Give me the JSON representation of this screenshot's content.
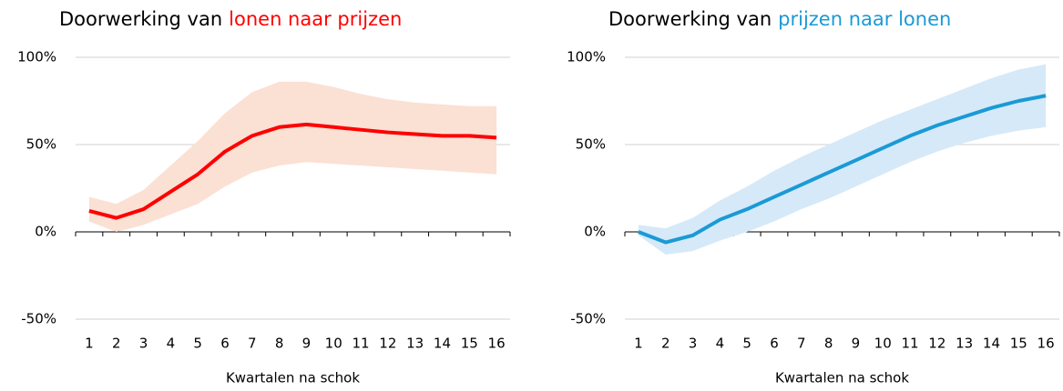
{
  "chart_data": [
    {
      "type": "line",
      "title_parts": [
        "Doorwerking van",
        "lonen naar prijzen"
      ],
      "title_highlight_color": "#ff0000",
      "x_label": "Kwartalen na schok",
      "categories": [
        "1",
        "2",
        "3",
        "4",
        "5",
        "6",
        "7",
        "8",
        "9",
        "10",
        "11",
        "12",
        "13",
        "14",
        "15",
        "16"
      ],
      "ylim": [
        -50,
        100
      ],
      "yticks": [
        {
          "value": -50,
          "label": "-50%"
        },
        {
          "value": 0,
          "label": "0%"
        },
        {
          "value": 50,
          "label": "50%"
        },
        {
          "value": 100,
          "label": "100%"
        }
      ],
      "grid": true,
      "series": [
        {
          "color": "#ff0000",
          "band_color": "#fbe0d4",
          "values": [
            12,
            8,
            13,
            23,
            33,
            46,
            55,
            60,
            61.5,
            60,
            58.5,
            57,
            56,
            55,
            55,
            54
          ],
          "upper": [
            20,
            16,
            24,
            38,
            52,
            68,
            80,
            86,
            86,
            83,
            79,
            76,
            74,
            73,
            72,
            72
          ],
          "lower": [
            6,
            0,
            4,
            10,
            16,
            26,
            34,
            38,
            40,
            39,
            38,
            37,
            36,
            35,
            34,
            33
          ]
        }
      ]
    },
    {
      "type": "line",
      "title_parts": [
        "Doorwerking van",
        "prijzen naar lonen"
      ],
      "title_highlight_color": "#1a9ad6",
      "x_label": "Kwartalen na schok",
      "categories": [
        "1",
        "2",
        "3",
        "4",
        "5",
        "6",
        "7",
        "8",
        "9",
        "10",
        "11",
        "12",
        "13",
        "14",
        "15",
        "16"
      ],
      "ylim": [
        -50,
        100
      ],
      "yticks": [
        {
          "value": -50,
          "label": "-50%"
        },
        {
          "value": 0,
          "label": "0%"
        },
        {
          "value": 50,
          "label": "50%"
        },
        {
          "value": 100,
          "label": "100%"
        }
      ],
      "grid": true,
      "series": [
        {
          "color": "#1a9ad6",
          "band_color": "#d6e9f8",
          "values": [
            0,
            -6,
            -2,
            7,
            13,
            20,
            27,
            34,
            41,
            48,
            55,
            61,
            66,
            71,
            75,
            78
          ],
          "upper": [
            4,
            2,
            8,
            18,
            26,
            35,
            43,
            50,
            57,
            64,
            70,
            76,
            82,
            88,
            93,
            96
          ],
          "lower": [
            -2,
            -13,
            -11,
            -5,
            0,
            6,
            13,
            19,
            26,
            33,
            40,
            46,
            51,
            55,
            58,
            60
          ]
        }
      ]
    }
  ]
}
